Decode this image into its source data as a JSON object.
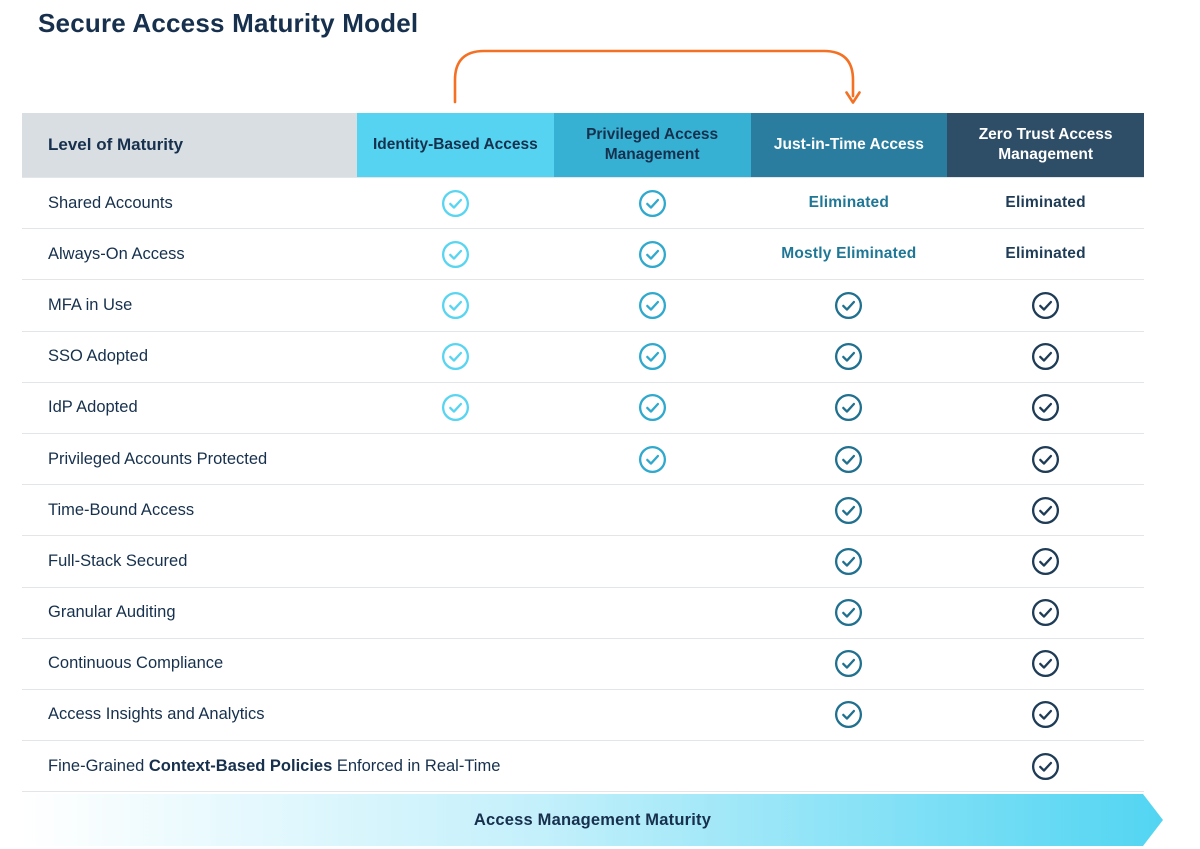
{
  "title": "Secure Access Maturity Model",
  "annotation_arrow": {
    "description": "progression arrow from Identity-Based Access to Just-in-Time Access",
    "color": "#f47023"
  },
  "table": {
    "row_header_label": "Level of Maturity",
    "row_header_bg": "#d9dee3",
    "columns": [
      {
        "label": "Identity-Based Access",
        "bg": "#55d3f0",
        "text_color": "#16304d",
        "check_color": "#58d5f1",
        "status_text_color": "#16304d"
      },
      {
        "label": "Privileged Access Management",
        "bg": "#36b1d4",
        "text_color": "#16304d",
        "check_color": "#2fa9cd",
        "status_text_color": "#16304d"
      },
      {
        "label": "Just-in-Time Access",
        "bg": "#2a7d9e",
        "text_color": "#ffffff",
        "check_color": "#20708f",
        "status_text_color": "#1f7795"
      },
      {
        "label": "Zero Trust Access Management",
        "bg": "#2e4d66",
        "text_color": "#ffffff",
        "check_color": "#1f3c57",
        "status_text_color": "#1f3c57"
      }
    ],
    "rows": [
      {
        "label": "Shared Accounts",
        "cells": [
          "check",
          "check",
          "Eliminated",
          "Eliminated"
        ]
      },
      {
        "label": "Always-On Access",
        "cells": [
          "check",
          "check",
          "Mostly Eliminated",
          "Eliminated"
        ]
      },
      {
        "label": "MFA in Use",
        "cells": [
          "check",
          "check",
          "check",
          "check"
        ]
      },
      {
        "label": "SSO Adopted",
        "cells": [
          "check",
          "check",
          "check",
          "check"
        ]
      },
      {
        "label": "IdP Adopted",
        "cells": [
          "check",
          "check",
          "check",
          "check"
        ]
      },
      {
        "label": "Privileged Accounts Protected",
        "cells": [
          "",
          "check",
          "check",
          "check"
        ]
      },
      {
        "label": "Time-Bound Access",
        "cells": [
          "",
          "",
          "check",
          "check"
        ]
      },
      {
        "label": "Full-Stack Secured",
        "cells": [
          "",
          "",
          "check",
          "check"
        ]
      },
      {
        "label": "Granular Auditing",
        "cells": [
          "",
          "",
          "check",
          "check"
        ]
      },
      {
        "label": "Continuous Compliance",
        "cells": [
          "",
          "",
          "check",
          "check"
        ]
      },
      {
        "label": "Access Insights and Analytics",
        "cells": [
          "",
          "",
          "check",
          "check"
        ]
      },
      {
        "label": "Fine-Grained Context-Based Policies Enforced in Real-Time",
        "label_parts": [
          {
            "text": "Fine-Grained ",
            "bold": false
          },
          {
            "text": "Context-Based Policies",
            "bold": true
          },
          {
            "text": " Enforced in Real-Time",
            "bold": false
          }
        ],
        "cells": [
          "",
          "",
          "",
          "check"
        ]
      }
    ]
  },
  "footer_banner": {
    "label": "Access Management Maturity"
  }
}
